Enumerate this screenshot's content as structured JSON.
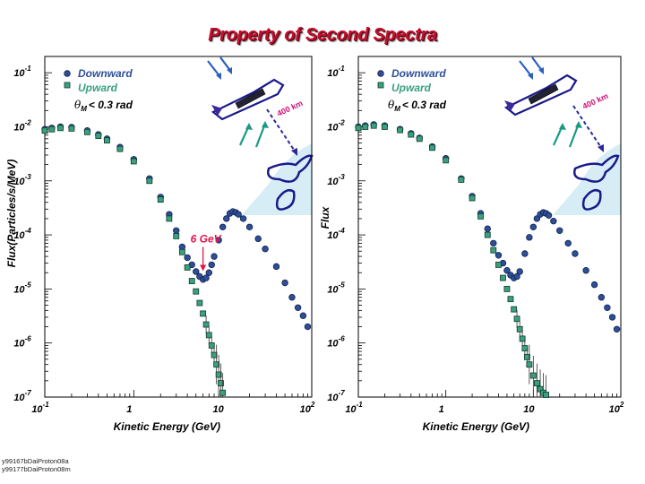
{
  "title": "Property of Second Spectra",
  "footer_lines": [
    "y99167bDaiProton08a",
    "y99177bDaiProton08m"
  ],
  "colors": {
    "downward": "#2d4f9a",
    "upward": "#3aa080",
    "title": "#c0102c",
    "annotation": "#e0154a",
    "earth_glow": "#cfeaf4",
    "arrow_blue": "#2a5fc0",
    "arrow_teal": "#1a9a85",
    "dashed_arrow": "#2a2a9a",
    "label_400km": "#d0107a",
    "shuttle": "#1a1a8a"
  },
  "chart_data": [
    {
      "type": "scatter",
      "xlabel": "Kinetic Energy (GeV)",
      "ylabel": "Flux(Particles/s/MeV)",
      "xscale": "log",
      "yscale": "log",
      "xlim": [
        0.1,
        100
      ],
      "ylim": [
        1e-07,
        0.2
      ],
      "xticks": [
        {
          "v": 0.1,
          "b": "10",
          "e": "-1"
        },
        {
          "v": 1,
          "b": "1",
          "e": ""
        },
        {
          "v": 10,
          "b": "10",
          "e": ""
        },
        {
          "v": 100,
          "b": "10",
          "e": "2"
        }
      ],
      "yticks": [
        {
          "v": 1e-07,
          "b": "10",
          "e": "-7"
        },
        {
          "v": 1e-06,
          "b": "10",
          "e": "-6"
        },
        {
          "v": 1e-05,
          "b": "10",
          "e": "-5"
        },
        {
          "v": 0.0001,
          "b": "10",
          "e": "-4"
        },
        {
          "v": 0.001,
          "b": "10",
          "e": "-3"
        },
        {
          "v": 0.01,
          "b": "10",
          "e": "-2"
        },
        {
          "v": 0.1,
          "b": "10",
          "e": "-1"
        }
      ],
      "legend": {
        "position": "top-left",
        "entries": [
          "Downward",
          "Upward"
        ],
        "cut_symbol": "θ",
        "cut_sub": "M",
        "cut_text": "< 0.3 rad"
      },
      "annotation": {
        "text": "6 GeV",
        "x": 6.0,
        "y": 1.7e-05
      },
      "series": [
        {
          "name": "Downward",
          "marker": "circle",
          "x": [
            0.1,
            0.12,
            0.15,
            0.2,
            0.3,
            0.4,
            0.5,
            0.7,
            1.0,
            1.5,
            2.0,
            2.5,
            3.0,
            3.5,
            4.0,
            4.5,
            5.0,
            5.5,
            6.0,
            6.5,
            7.0,
            7.5,
            8.0,
            9.0,
            10.0,
            11.0,
            12.0,
            13.0,
            14.0,
            15.0,
            17.0,
            20.0,
            25.0,
            30.0,
            40.0,
            50.0,
            60.0,
            70.0,
            80.0,
            90.0
          ],
          "y": [
            0.009,
            0.0095,
            0.01,
            0.0098,
            0.0085,
            0.0072,
            0.006,
            0.0042,
            0.0025,
            0.0011,
            0.0005,
            0.00024,
            0.00012,
            6e-05,
            3.8e-05,
            2.8e-05,
            2.1e-05,
            1.7e-05,
            1.5e-05,
            1.6e-05,
            2e-05,
            2.8e-05,
            4e-05,
            8e-05,
            0.00014,
            0.0002,
            0.00025,
            0.00027,
            0.00026,
            0.00024,
            0.0002,
            0.00014,
            8.5e-05,
            5.5e-05,
            2.6e-05,
            1.3e-05,
            7e-06,
            4.5e-06,
            3.2e-06,
            2e-06
          ]
        },
        {
          "name": "Upward",
          "marker": "square",
          "x": [
            0.1,
            0.12,
            0.15,
            0.2,
            0.3,
            0.4,
            0.5,
            0.7,
            1.0,
            1.5,
            2.0,
            2.5,
            3.0,
            3.5,
            4.0,
            4.5,
            5.0,
            5.5,
            6.0,
            6.5,
            7.0,
            7.5,
            8.0,
            8.5,
            9.0,
            9.5,
            10.0
          ],
          "y": [
            0.0085,
            0.009,
            0.0095,
            0.0093,
            0.008,
            0.0068,
            0.0056,
            0.0039,
            0.0023,
            0.001,
            0.00045,
            0.0002,
            9.5e-05,
            4.8e-05,
            2.5e-05,
            1.4e-05,
            9e-06,
            5.5e-06,
            3.5e-06,
            2.2e-06,
            1.4e-06,
            9e-07,
            6e-07,
            4e-07,
            2.6e-07,
            1.8e-07,
            1.2e-07
          ]
        }
      ]
    },
    {
      "type": "scatter",
      "xlabel": "Kinetic Energy (GeV)",
      "ylabel": "Flux",
      "xscale": "log",
      "yscale": "log",
      "xlim": [
        0.1,
        100
      ],
      "ylim": [
        1e-07,
        0.2
      ],
      "xticks": [
        {
          "v": 0.1,
          "b": "10",
          "e": "-1"
        },
        {
          "v": 1,
          "b": "1",
          "e": ""
        },
        {
          "v": 10,
          "b": "10",
          "e": ""
        },
        {
          "v": 100,
          "b": "10",
          "e": "2"
        }
      ],
      "yticks": [
        {
          "v": 1e-07,
          "b": "10",
          "e": "-7"
        },
        {
          "v": 1e-06,
          "b": "10",
          "e": "-6"
        },
        {
          "v": 1e-05,
          "b": "10",
          "e": "-5"
        },
        {
          "v": 0.0001,
          "b": "10",
          "e": "-4"
        },
        {
          "v": 0.001,
          "b": "10",
          "e": "-3"
        },
        {
          "v": 0.01,
          "b": "10",
          "e": "-2"
        },
        {
          "v": 0.1,
          "b": "10",
          "e": "-1"
        }
      ],
      "legend": {
        "position": "top-left",
        "entries": [
          "Downward",
          "Upward"
        ],
        "cut_symbol": "θ",
        "cut_sub": "M",
        "cut_text": "< 0.3 rad"
      },
      "series": [
        {
          "name": "Downward",
          "marker": "circle",
          "x": [
            0.1,
            0.12,
            0.15,
            0.2,
            0.3,
            0.4,
            0.5,
            0.7,
            1.0,
            1.5,
            2.0,
            2.5,
            3.0,
            3.5,
            4.0,
            4.5,
            5.0,
            5.5,
            6.0,
            6.5,
            7.0,
            8.0,
            9.0,
            10.0,
            11.0,
            12.0,
            13.0,
            14.0,
            15.0,
            17.0,
            20.0,
            25.0,
            30.0,
            40.0,
            50.0,
            60.0,
            70.0,
            80.0,
            90.0
          ],
          "y": [
            0.01,
            0.0105,
            0.011,
            0.0105,
            0.009,
            0.0075,
            0.0062,
            0.0043,
            0.0026,
            0.0011,
            0.00052,
            0.00025,
            0.00013,
            7e-05,
            4.2e-05,
            3e-05,
            2.2e-05,
            1.8e-05,
            1.6e-05,
            1.7e-05,
            2.1e-05,
            4.5e-05,
            9e-05,
            0.00014,
            0.0002,
            0.00024,
            0.00026,
            0.00025,
            0.00023,
            0.00018,
            0.00012,
            7e-05,
            4.5e-05,
            2.2e-05,
            1.2e-05,
            7e-06,
            4.5e-06,
            3e-06,
            1.8e-06
          ]
        },
        {
          "name": "Upward",
          "marker": "square",
          "x": [
            0.1,
            0.12,
            0.15,
            0.2,
            0.3,
            0.4,
            0.5,
            0.7,
            1.0,
            1.5,
            2.0,
            2.5,
            3.0,
            3.5,
            4.0,
            4.5,
            5.0,
            5.5,
            6.0,
            6.5,
            7.0,
            7.5,
            8.0,
            8.5,
            9.0,
            10.0,
            11.0,
            12.0,
            13.0,
            14.0
          ],
          "y": [
            0.0095,
            0.01,
            0.0105,
            0.01,
            0.0087,
            0.0072,
            0.006,
            0.0041,
            0.0024,
            0.00105,
            0.00048,
            0.00022,
            0.0001,
            5.2e-05,
            2.8e-05,
            1.6e-05,
            1e-05,
            6.5e-06,
            4.2e-06,
            2.8e-06,
            1.8e-06,
            1.2e-06,
            8e-07,
            5.5e-07,
            4e-07,
            2.5e-07,
            1.8e-07,
            1.4e-07,
            1.2e-07,
            1.1e-07
          ]
        }
      ]
    }
  ],
  "inset": {
    "distance_label": "400 km"
  }
}
